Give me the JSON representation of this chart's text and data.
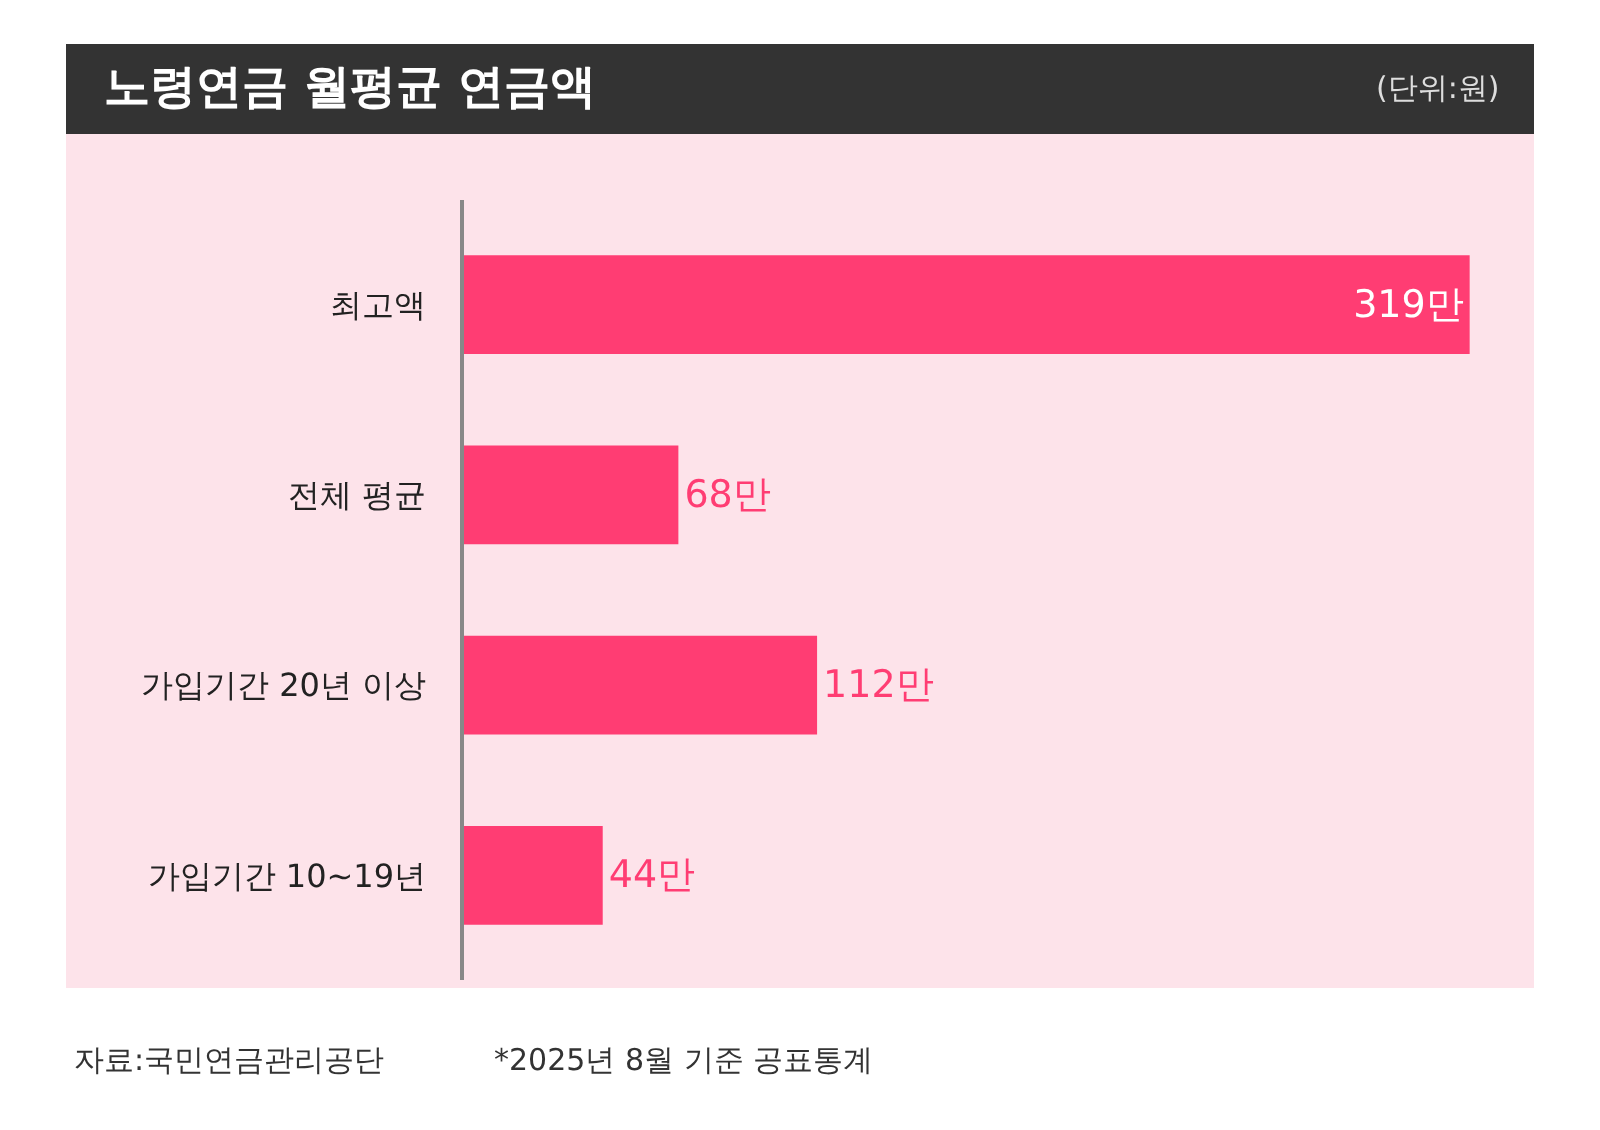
{
  "chart_data": {
    "type": "bar",
    "orientation": "horizontal",
    "title": "노령연금 월평균 연금액",
    "subtitle": "(단위:원)",
    "categories": [
      "최고액",
      "전체 평균",
      "가입기간 20년 이상",
      "가입기간 10~19년"
    ],
    "values": [
      319,
      68,
      112,
      44
    ],
    "color": "#ff3d73",
    "value_labels": [
      "319만",
      "68만",
      "112만",
      "44만"
    ],
    "annotations": [
      "자료:국민연금관리공단",
      "*2025년 8월 기준 공표통계"
    ],
    "grid": false,
    "legend": false
  }
}
